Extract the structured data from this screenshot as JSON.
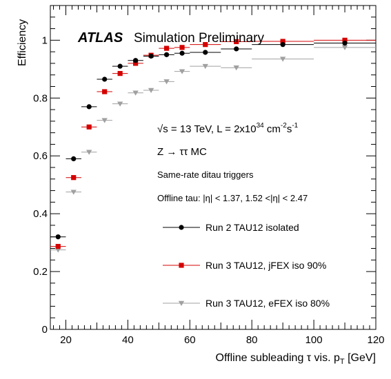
{
  "chart_data": {
    "type": "scatter",
    "xlabel": "Offline subleading τ vis. p",
    "xlabel_sub": "T",
    "xlabel_unit": " [GeV]",
    "ylabel": "Efficiency",
    "xlim": [
      15,
      120
    ],
    "ylim": [
      0,
      1.12
    ],
    "x_ticks": [
      20,
      40,
      60,
      80,
      100,
      120
    ],
    "y_ticks": [
      0,
      0.2,
      0.4,
      0.6,
      0.8,
      1
    ],
    "y_tick_labels": [
      "0",
      "0.2",
      "0.4",
      "0.6",
      "0.8",
      "1"
    ],
    "grid": false,
    "legend_position": "bottom-center",
    "title_bold": "ATLAS",
    "title_rest": "Simulation Preliminary",
    "annotations": {
      "energy_prefix": "√s = 13 TeV, L = 2x10",
      "energy_exp1": "34",
      "energy_mid": " cm",
      "energy_exp2": "-2",
      "energy_s": "s",
      "energy_exp3": "-1",
      "process": "Z → ττ MC",
      "triggers": "Same-rate ditau triggers",
      "offline": "Offline tau: |η| < 1.37, 1.52 <|η| < 2.47"
    },
    "series": [
      {
        "name": "Run 2 TAU12 isolated",
        "color": "#000000",
        "marker": "circle",
        "points": [
          {
            "x": 17.5,
            "xerr": 2.5,
            "y": 0.32
          },
          {
            "x": 22.5,
            "xerr": 2.5,
            "y": 0.59
          },
          {
            "x": 27.5,
            "xerr": 2.5,
            "y": 0.77
          },
          {
            "x": 32.5,
            "xerr": 2.5,
            "y": 0.865
          },
          {
            "x": 37.5,
            "xerr": 2.5,
            "y": 0.91
          },
          {
            "x": 42.5,
            "xerr": 2.5,
            "y": 0.93
          },
          {
            "x": 47.5,
            "xerr": 2.5,
            "y": 0.945
          },
          {
            "x": 52.5,
            "xerr": 2.5,
            "y": 0.95
          },
          {
            "x": 57.5,
            "xerr": 2.5,
            "y": 0.955
          },
          {
            "x": 65,
            "xerr": 5,
            "y": 0.958
          },
          {
            "x": 75,
            "xerr": 5,
            "y": 0.97
          },
          {
            "x": 90,
            "xerr": 10,
            "y": 0.985
          },
          {
            "x": 110,
            "xerr": 10,
            "y": 0.99
          }
        ]
      },
      {
        "name": "Run 3 TAU12, jFEX iso 90%",
        "color": "#d40000",
        "marker": "square",
        "points": [
          {
            "x": 17.5,
            "xerr": 2.5,
            "y": 0.287
          },
          {
            "x": 22.5,
            "xerr": 2.5,
            "y": 0.525
          },
          {
            "x": 27.5,
            "xerr": 2.5,
            "y": 0.7
          },
          {
            "x": 32.5,
            "xerr": 2.5,
            "y": 0.822
          },
          {
            "x": 37.5,
            "xerr": 2.5,
            "y": 0.885
          },
          {
            "x": 42.5,
            "xerr": 2.5,
            "y": 0.92
          },
          {
            "x": 47.5,
            "xerr": 2.5,
            "y": 0.948
          },
          {
            "x": 52.5,
            "xerr": 2.5,
            "y": 0.972
          },
          {
            "x": 57.5,
            "xerr": 2.5,
            "y": 0.975
          },
          {
            "x": 65,
            "xerr": 5,
            "y": 0.985
          },
          {
            "x": 75,
            "xerr": 5,
            "y": 0.995
          },
          {
            "x": 90,
            "xerr": 10,
            "y": 0.996
          },
          {
            "x": 110,
            "xerr": 10,
            "y": 1.0
          }
        ]
      },
      {
        "name": "Run 3 TAU12, eFEX iso 80%",
        "color": "#a0a0a0",
        "marker": "triangle-down",
        "points": [
          {
            "x": 17.5,
            "xerr": 2.5,
            "y": 0.275
          },
          {
            "x": 22.5,
            "xerr": 2.5,
            "y": 0.475
          },
          {
            "x": 27.5,
            "xerr": 2.5,
            "y": 0.613
          },
          {
            "x": 32.5,
            "xerr": 2.5,
            "y": 0.723
          },
          {
            "x": 37.5,
            "xerr": 2.5,
            "y": 0.78
          },
          {
            "x": 42.5,
            "xerr": 2.5,
            "y": 0.818
          },
          {
            "x": 47.5,
            "xerr": 2.5,
            "y": 0.827
          },
          {
            "x": 52.5,
            "xerr": 2.5,
            "y": 0.857
          },
          {
            "x": 57.5,
            "xerr": 2.5,
            "y": 0.892
          },
          {
            "x": 65,
            "xerr": 5,
            "y": 0.91
          },
          {
            "x": 75,
            "xerr": 5,
            "y": 0.905
          },
          {
            "x": 90,
            "xerr": 10,
            "y": 0.935
          },
          {
            "x": 110,
            "xerr": 10,
            "y": 0.975
          }
        ]
      }
    ]
  }
}
